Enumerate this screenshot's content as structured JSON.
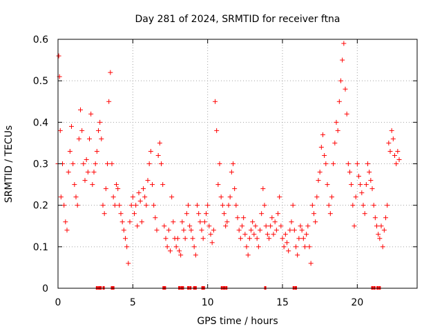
{
  "chart_data": {
    "type": "scatter",
    "title": "Day 281 of 2024, SRMTID for receiver ftna",
    "xlabel": "GPS time / hours",
    "ylabel": "SRMTID / TECUs",
    "xlim": [
      0,
      24
    ],
    "ylim": [
      0,
      0.6
    ],
    "xticks": [
      0,
      5,
      10,
      15,
      20
    ],
    "xtick_labels": [
      "0",
      "5",
      "10",
      "15",
      "20"
    ],
    "yticks": [
      0,
      0.1,
      0.2,
      0.3,
      0.4,
      0.5,
      0.6
    ],
    "ytick_labels": [
      "0",
      "0.1",
      "0.2",
      "0.3",
      "0.4",
      "0.5",
      "0.6"
    ],
    "grid": true,
    "marker": "+",
    "series": [
      {
        "name": "SRMTID",
        "color": "#ff0000",
        "x": [
          0.0,
          0.05,
          0.1,
          0.15,
          0.2,
          0.3,
          0.4,
          0.5,
          0.6,
          0.7,
          0.8,
          0.9,
          1.0,
          1.1,
          1.2,
          1.3,
          1.4,
          1.5,
          1.6,
          1.7,
          1.8,
          1.9,
          2.0,
          2.1,
          2.2,
          2.3,
          2.4,
          2.5,
          2.6,
          2.7,
          2.8,
          2.9,
          3.0,
          3.1,
          3.2,
          3.3,
          3.4,
          3.5,
          3.6,
          3.7,
          3.8,
          3.9,
          4.0,
          4.1,
          4.2,
          4.3,
          4.4,
          4.5,
          4.6,
          4.7,
          4.8,
          4.9,
          5.0,
          5.1,
          5.2,
          5.3,
          5.4,
          5.5,
          5.6,
          5.7,
          5.8,
          5.9,
          6.0,
          6.1,
          6.2,
          6.3,
          6.4,
          6.5,
          6.6,
          6.7,
          6.8,
          6.9,
          7.0,
          7.1,
          7.2,
          7.3,
          7.4,
          7.5,
          7.6,
          7.7,
          7.8,
          7.9,
          8.0,
          8.1,
          8.2,
          8.3,
          8.4,
          8.5,
          8.6,
          8.7,
          8.8,
          8.9,
          9.0,
          9.1,
          9.2,
          9.3,
          9.4,
          9.5,
          9.6,
          9.7,
          9.8,
          9.9,
          10.0,
          10.1,
          10.2,
          10.3,
          10.4,
          10.5,
          10.6,
          10.7,
          10.8,
          10.9,
          11.0,
          11.1,
          11.2,
          11.3,
          11.4,
          11.5,
          11.6,
          11.7,
          11.8,
          11.9,
          12.0,
          12.1,
          12.2,
          12.3,
          12.4,
          12.5,
          12.6,
          12.7,
          12.8,
          12.9,
          13.0,
          13.1,
          13.2,
          13.3,
          13.4,
          13.5,
          13.6,
          13.7,
          13.8,
          13.9,
          14.0,
          14.1,
          14.2,
          14.3,
          14.4,
          14.5,
          14.6,
          14.7,
          14.8,
          14.9,
          15.0,
          15.1,
          15.2,
          15.3,
          15.4,
          15.5,
          15.6,
          15.7,
          15.8,
          15.9,
          16.0,
          16.1,
          16.2,
          16.3,
          16.4,
          16.5,
          16.6,
          16.7,
          16.8,
          16.9,
          17.0,
          17.1,
          17.2,
          17.3,
          17.4,
          17.5,
          17.6,
          17.7,
          17.8,
          17.9,
          18.0,
          18.1,
          18.2,
          18.3,
          18.4,
          18.5,
          18.6,
          18.7,
          18.8,
          18.9,
          19.0,
          19.1,
          19.2,
          19.3,
          19.4,
          19.5,
          19.6,
          19.7,
          19.8,
          19.9,
          20.0,
          20.1,
          20.2,
          20.3,
          20.4,
          20.5,
          20.6,
          20.7,
          20.8,
          20.9,
          21.0,
          21.1,
          21.2,
          21.3,
          21.4,
          21.5,
          21.6,
          21.7,
          21.8,
          21.9,
          22.0,
          22.1,
          22.2,
          22.3,
          22.4,
          22.5,
          22.6,
          22.7,
          22.8
        ],
        "y": [
          0.3,
          0.56,
          0.51,
          0.38,
          0.22,
          0.3,
          0.2,
          0.16,
          0.14,
          0.28,
          0.33,
          0.39,
          0.3,
          0.25,
          0.22,
          0.2,
          0.36,
          0.43,
          0.38,
          0.3,
          0.26,
          0.31,
          0.28,
          0.36,
          0.42,
          0.25,
          0.28,
          0.3,
          0.33,
          0.38,
          0.4,
          0.36,
          0.2,
          0.18,
          0.24,
          0.3,
          0.45,
          0.52,
          0.3,
          0.22,
          0.2,
          0.25,
          0.24,
          0.2,
          0.18,
          0.16,
          0.14,
          0.12,
          0.1,
          0.06,
          0.16,
          0.2,
          0.22,
          0.18,
          0.2,
          0.15,
          0.23,
          0.21,
          0.16,
          0.24,
          0.22,
          0.2,
          0.26,
          0.3,
          0.33,
          0.25,
          0.2,
          0.17,
          0.14,
          0.32,
          0.35,
          0.3,
          0.25,
          0.15,
          0.12,
          0.1,
          0.14,
          0.09,
          0.22,
          0.16,
          0.12,
          0.1,
          0.12,
          0.09,
          0.08,
          0.16,
          0.14,
          0.12,
          0.18,
          0.2,
          0.15,
          0.14,
          0.12,
          0.1,
          0.08,
          0.2,
          0.18,
          0.16,
          0.14,
          0.12,
          0.16,
          0.18,
          0.2,
          0.15,
          0.13,
          0.11,
          0.14,
          0.45,
          0.38,
          0.25,
          0.3,
          0.22,
          0.2,
          0.18,
          0.15,
          0.16,
          0.2,
          0.22,
          0.28,
          0.3,
          0.24,
          0.2,
          0.17,
          0.14,
          0.12,
          0.15,
          0.17,
          0.13,
          0.1,
          0.08,
          0.12,
          0.14,
          0.16,
          0.13,
          0.15,
          0.12,
          0.1,
          0.14,
          0.18,
          0.24,
          0.2,
          0.15,
          0.13,
          0.12,
          0.15,
          0.17,
          0.13,
          0.16,
          0.14,
          0.18,
          0.22,
          0.15,
          0.12,
          0.1,
          0.13,
          0.11,
          0.09,
          0.14,
          0.16,
          0.2,
          0.14,
          0.1,
          0.08,
          0.12,
          0.15,
          0.14,
          0.12,
          0.1,
          0.13,
          0.15,
          0.1,
          0.06,
          0.2,
          0.18,
          0.16,
          0.22,
          0.26,
          0.28,
          0.34,
          0.37,
          0.32,
          0.3,
          0.25,
          0.2,
          0.18,
          0.22,
          0.3,
          0.35,
          0.4,
          0.38,
          0.45,
          0.5,
          0.55,
          0.59,
          0.48,
          0.42,
          0.3,
          0.28,
          0.25,
          0.2,
          0.15,
          0.22,
          0.3,
          0.27,
          0.25,
          0.23,
          0.2,
          0.18,
          0.25,
          0.3,
          0.28,
          0.26,
          0.24,
          0.2,
          0.17,
          0.15,
          0.13,
          0.12,
          0.15,
          0.1,
          0.14,
          0.17,
          0.2,
          0.35,
          0.33,
          0.38,
          0.36,
          0.32,
          0.3,
          0.33,
          0.31
        ]
      }
    ],
    "zero_markers_x": [
      2.6,
      2.75,
      2.85,
      3.05,
      3.6,
      3.7,
      7.05,
      7.15,
      8.1,
      8.25,
      8.35,
      8.7,
      8.85,
      9.1,
      9.2,
      9.65,
      9.75,
      10.95,
      11.1,
      11.25,
      13.85,
      15.75,
      15.9,
      21.0,
      21.15,
      21.35,
      21.5
    ]
  }
}
